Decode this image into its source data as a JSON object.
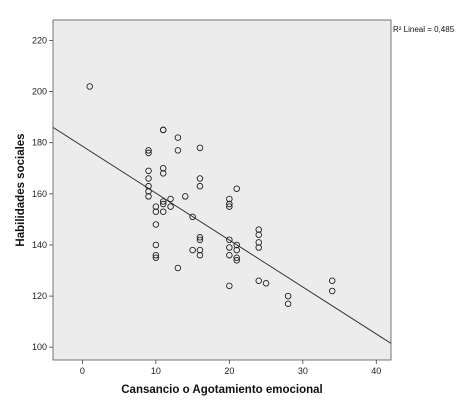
{
  "chart_data": {
    "type": "scatter",
    "xlabel": "Cansancio o Agotamiento  emocional",
    "ylabel": "Habilidades sociales",
    "xlim": [
      -4,
      42
    ],
    "ylim": [
      95,
      228
    ],
    "x_ticks": [
      0,
      10,
      20,
      30,
      40
    ],
    "y_ticks": [
      100,
      120,
      140,
      160,
      180,
      200,
      220
    ],
    "r2_label": "R² Lineal = 0,485",
    "grid": false,
    "plot_background": "#ececec",
    "marker_color": "#222222",
    "fit_line": {
      "x": [
        -4,
        42
      ],
      "y": [
        186,
        101.5
      ]
    },
    "points": [
      [
        1,
        202
      ],
      [
        9,
        177
      ],
      [
        9,
        176
      ],
      [
        9,
        169
      ],
      [
        9,
        166
      ],
      [
        9,
        163
      ],
      [
        9,
        161
      ],
      [
        9,
        159
      ],
      [
        10,
        155
      ],
      [
        10,
        153
      ],
      [
        10,
        148
      ],
      [
        10,
        140
      ],
      [
        10,
        136
      ],
      [
        10,
        135
      ],
      [
        11,
        185
      ],
      [
        11,
        185
      ],
      [
        11,
        170
      ],
      [
        11,
        168
      ],
      [
        11,
        157
      ],
      [
        11,
        156
      ],
      [
        11,
        153
      ],
      [
        12,
        158
      ],
      [
        12,
        155
      ],
      [
        13,
        182
      ],
      [
        13,
        177
      ],
      [
        13,
        131
      ],
      [
        14,
        159
      ],
      [
        15,
        151
      ],
      [
        15,
        138
      ],
      [
        16,
        178
      ],
      [
        16,
        166
      ],
      [
        16,
        163
      ],
      [
        16,
        143
      ],
      [
        16,
        142
      ],
      [
        16,
        138
      ],
      [
        16,
        136
      ],
      [
        20,
        158
      ],
      [
        20,
        156
      ],
      [
        20,
        155
      ],
      [
        20,
        142
      ],
      [
        20,
        139
      ],
      [
        20,
        136
      ],
      [
        20,
        124
      ],
      [
        21,
        162
      ],
      [
        21,
        140
      ],
      [
        21,
        138
      ],
      [
        21,
        135
      ],
      [
        21,
        134
      ],
      [
        24,
        146
      ],
      [
        24,
        144
      ],
      [
        24,
        141
      ],
      [
        24,
        139
      ],
      [
        24,
        126
      ],
      [
        25,
        125
      ],
      [
        28,
        120
      ],
      [
        28,
        117
      ],
      [
        34,
        126
      ],
      [
        34,
        122
      ]
    ]
  }
}
